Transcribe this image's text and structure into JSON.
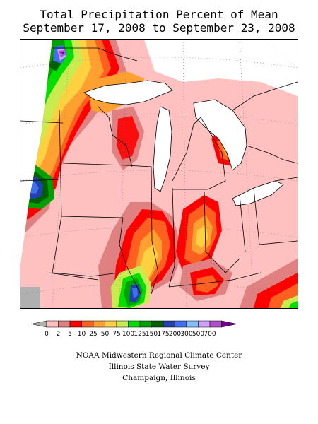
{
  "title": {
    "line1": "Total Precipitation Percent of Mean",
    "line2": "September 17, 2008 to September 23, 2008"
  },
  "legend": {
    "colors": [
      "#b0b0b0",
      "#ffc0c0",
      "#e08080",
      "#ff0000",
      "#ff6020",
      "#ffa030",
      "#ffd040",
      "#c8ec50",
      "#00e000",
      "#00a000",
      "#006000",
      "#2040b0",
      "#4070f0",
      "#80c0ff",
      "#d0a0ff",
      "#b050d0",
      "#700090"
    ],
    "labels": [
      "0",
      "2",
      "5",
      "10",
      "25",
      "50",
      "75",
      "100",
      "125",
      "150",
      "175",
      "200",
      "300",
      "500",
      "700"
    ]
  },
  "credits": {
    "line1": "NOAA Midwestern Regional Climate Center",
    "line2": "Illinois State Water Survey",
    "line3": "Champaign, Illinois"
  }
}
